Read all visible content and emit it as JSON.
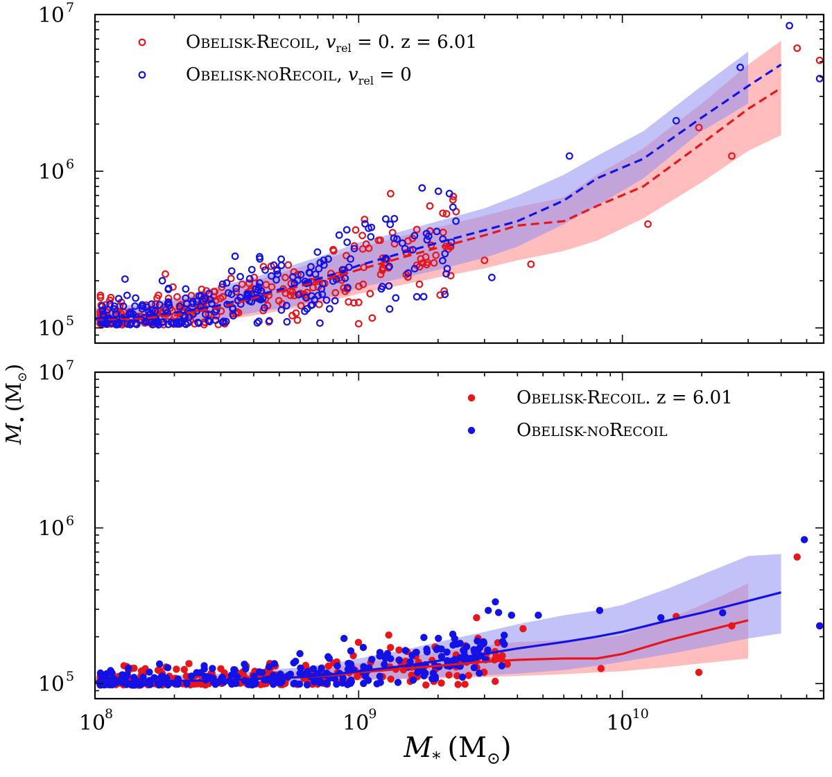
{
  "figure": {
    "xlabel_main": "M",
    "xlabel_sub": "*",
    "xlabel_unit": "(M",
    "xlabel_unit_close": ")",
    "ylabel_main": "M",
    "ylabel_sub": "•",
    "ylabel_unit": "(M",
    "ylabel_unit_close": ")",
    "sun_symbol": "⊙"
  },
  "colors": {
    "recoil": "#e8151b",
    "norecoil": "#1212e6",
    "recoil_band": "#ff9a9a",
    "norecoil_band": "#8f8ff2",
    "overlap": "#9966aa"
  },
  "chart_data": [
    {
      "panel": "top",
      "type": "scatter",
      "marker": "open-circle",
      "xscale": "log",
      "yscale": "log",
      "xlim": [
        100000000.0,
        58000000000.0
      ],
      "ylim": [
        80000.0,
        10000000.0
      ],
      "x_ticks": [
        {
          "base": "10",
          "exp": "8",
          "value": 100000000.0
        },
        {
          "base": "10",
          "exp": "9",
          "value": 1000000000.0
        },
        {
          "base": "10",
          "exp": "10",
          "value": 10000000000.0
        }
      ],
      "y_ticks": [
        {
          "base": "10",
          "exp": "5",
          "value": 100000.0
        },
        {
          "base": "10",
          "exp": "6",
          "value": 1000000.0
        },
        {
          "base": "10",
          "exp": "7",
          "value": 10000000.0
        }
      ],
      "legend_position": "top-left",
      "legend": [
        {
          "series": "recoil",
          "name_sc": "Obelisk-Recoil",
          "suffix": ", v",
          "suffix_sub": "rel",
          "suffix_tail": " = 0.  z = 6.01"
        },
        {
          "series": "norecoil",
          "name_sc": "Obelisk-noRecoil",
          "suffix": ", v",
          "suffix_sub": "rel",
          "suffix_tail": " = 0"
        }
      ],
      "median": {
        "style": "dashed",
        "x": [
          100000000.0,
          150000000.0,
          200000000.0,
          300000000.0,
          400000000.0,
          600000000.0,
          800000000.0,
          1000000000.0,
          1500000000.0,
          2000000000.0,
          3000000000.0,
          4000000000.0,
          6000000000.0,
          8000000000.0,
          12000000000.0,
          20000000000.0,
          30000000000.0,
          40000000000.0
        ],
        "recoil": [
          113000.0,
          115000.0,
          120000.0,
          135000.0,
          155000.0,
          185000.0,
          210000.0,
          235000.0,
          285000.0,
          325000.0,
          390000.0,
          450000.0,
          480000.0,
          600000.0,
          800000.0,
          1500000.0,
          2500000.0,
          3400000.0
        ],
        "norecoil": [
          115000.0,
          118000.0,
          125000.0,
          140000.0,
          160000.0,
          190000.0,
          220000.0,
          250000.0,
          305000.0,
          350000.0,
          420000.0,
          480000.0,
          650000.0,
          900000.0,
          1200000.0,
          2200000.0,
          3500000.0,
          4800000.0
        ]
      },
      "band": {
        "x": [
          100000000.0,
          150000000.0,
          200000000.0,
          300000000.0,
          400000000.0,
          600000000.0,
          800000000.0,
          1000000000.0,
          1500000000.0,
          2000000000.0,
          3000000000.0,
          4000000000.0,
          6000000000.0,
          8000000000.0,
          12000000000.0,
          20000000000.0,
          30000000000.0,
          40000000000.0
        ],
        "recoil_low": [
          104000.0,
          105000.0,
          107000.0,
          112000.0,
          120000.0,
          135000.0,
          150000.0,
          165000.0,
          190000.0,
          210000.0,
          240000.0,
          270000.0,
          310000.0,
          360000.0,
          500000.0,
          850000.0,
          1350000.0,
          1700000.0
        ],
        "recoil_high": [
          130000.0,
          138000.0,
          150000.0,
          175000.0,
          200000.0,
          245000.0,
          285000.0,
          325000.0,
          390000.0,
          440000.0,
          520000.0,
          590000.0,
          680000.0,
          950000.0,
          1400000.0,
          2700000.0,
          4800000.0,
          6800000.0
        ],
        "norecoil_low": [
          105000.0,
          106000.0,
          108000.0,
          115000.0,
          125000.0,
          140000.0,
          160000.0,
          180000.0,
          210000.0,
          235000.0,
          280000.0,
          330000.0,
          460000.0,
          600000.0,
          900000.0,
          1800000.0,
          2700000.0,
          3300000.0
        ],
        "norecoil_high": [
          135000.0,
          142000.0,
          155000.0,
          185000.0,
          210000.0,
          260000.0,
          305000.0,
          350000.0,
          420000.0,
          480000.0,
          580000.0,
          700000.0,
          950000.0,
          1250000.0,
          1800000.0,
          3500000.0,
          5800000.0,
          7000000.0
        ],
        "recoil_x_end": 40000000000.0,
        "norecoil_x_end": 34000000000.0
      },
      "scatter_seed": 7,
      "scatter_count_per_series": 260,
      "scatter_outliers": {
        "recoil": [
          [
            46000000000.0,
            6100000.0
          ],
          [
            56000000000.0,
            5100000.0
          ],
          [
            26000000000.0,
            1250000.0
          ],
          [
            12500000000.0,
            460000.0
          ],
          [
            4500000000.0,
            255000.0
          ],
          [
            19500000000.0,
            1900000.0
          ],
          [
            3000000000.0,
            270000.0
          ],
          [
            1700000000.0,
            190000.0
          ]
        ],
        "norecoil": [
          [
            43000000000.0,
            8500000.0
          ],
          [
            56000000000.0,
            3900000.0
          ],
          [
            28000000000.0,
            4600000.0
          ],
          [
            16000000000.0,
            2100000.0
          ],
          [
            6300000000.0,
            1250000.0
          ],
          [
            3200000000.0,
            210000.0
          ],
          [
            130000000.0,
            205000.0
          ],
          [
            180000000.0,
            200000.0
          ]
        ]
      }
    },
    {
      "panel": "bottom",
      "type": "scatter",
      "marker": "filled-circle",
      "xscale": "log",
      "yscale": "log",
      "xlim": [
        100000000.0,
        58000000000.0
      ],
      "ylim": [
        80000.0,
        10000000.0
      ],
      "x_ticks": [
        {
          "base": "10",
          "exp": "8",
          "value": 100000000.0
        },
        {
          "base": "10",
          "exp": "9",
          "value": 1000000000.0
        },
        {
          "base": "10",
          "exp": "10",
          "value": 10000000000.0
        }
      ],
      "y_ticks": [
        {
          "base": "10",
          "exp": "5",
          "value": 100000.0
        },
        {
          "base": "10",
          "exp": "6",
          "value": 1000000.0
        },
        {
          "base": "10",
          "exp": "7",
          "value": 10000000.0
        }
      ],
      "legend_position": "top-right",
      "legend": [
        {
          "series": "recoil",
          "name_sc": "Obelisk-Recoil",
          "suffix": ".  z = 6.01",
          "suffix_sub": "",
          "suffix_tail": ""
        },
        {
          "series": "norecoil",
          "name_sc": "Obelisk-noRecoil",
          "suffix": "",
          "suffix_sub": "",
          "suffix_tail": ""
        }
      ],
      "median": {
        "style": "solid",
        "x": [
          100000000.0,
          150000000.0,
          200000000.0,
          300000000.0,
          400000000.0,
          600000000.0,
          800000000.0,
          1000000000.0,
          1500000000.0,
          2000000000.0,
          3000000000.0,
          4000000000.0,
          6000000000.0,
          8000000000.0,
          10000000000.0,
          15000000000.0,
          20000000000.0,
          30000000000.0,
          40000000000.0
        ],
        "recoil": [
          103000.0,
          103000.0,
          104000.0,
          105000.0,
          107000.0,
          110000.0,
          113000.0,
          118000.0,
          125000.0,
          130000.0,
          138000.0,
          142000.0,
          145000.0,
          145000.0,
          155000.0,
          190000.0,
          215000.0,
          255000.0,
          null
        ],
        "norecoil": [
          103000.0,
          103000.0,
          104000.0,
          105000.0,
          107000.0,
          110000.0,
          115000.0,
          120000.0,
          130000.0,
          140000.0,
          155000.0,
          168000.0,
          185000.0,
          200000.0,
          215000.0,
          255000.0,
          285000.0,
          340000.0,
          385000.0
        ]
      },
      "band": {
        "x": [
          100000000.0,
          150000000.0,
          200000000.0,
          300000000.0,
          400000000.0,
          600000000.0,
          800000000.0,
          1000000000.0,
          1500000000.0,
          2000000000.0,
          3000000000.0,
          4000000000.0,
          6000000000.0,
          8000000000.0,
          10000000000.0,
          15000000000.0,
          20000000000.0,
          30000000000.0,
          40000000000.0
        ],
        "recoil_low": [
          99000.0,
          99000.0,
          100000.0,
          100000.0,
          101000.0,
          102000.0,
          103000.0,
          105000.0,
          107000.0,
          108000.0,
          110000.0,
          112000.0,
          115000.0,
          118000.0,
          120000.0,
          128000.0,
          135000.0,
          145000.0,
          null
        ],
        "recoil_high": [
          108000.0,
          109000.0,
          110000.0,
          112000.0,
          115000.0,
          120000.0,
          127000.0,
          135000.0,
          148000.0,
          160000.0,
          175000.0,
          185000.0,
          190000.0,
          195000.0,
          205000.0,
          260000.0,
          320000.0,
          440000.0,
          null
        ],
        "norecoil_low": [
          99000.0,
          99000.0,
          100000.0,
          100000.0,
          101000.0,
          102000.0,
          104000.0,
          106000.0,
          108000.0,
          110000.0,
          113000.0,
          116000.0,
          122000.0,
          130000.0,
          138000.0,
          155000.0,
          170000.0,
          195000.0,
          210000.0
        ],
        "norecoil_high": [
          110000.0,
          111000.0,
          113000.0,
          116000.0,
          120000.0,
          127000.0,
          135000.0,
          145000.0,
          165000.0,
          185000.0,
          215000.0,
          240000.0,
          275000.0,
          295000.0,
          320000.0,
          410000.0,
          500000.0,
          660000.0,
          680000.0
        ],
        "recoil_x_end": 30000000000.0,
        "norecoil_x_end": 40000000000.0
      },
      "scatter_seed": 11,
      "scatter_count_per_series": 300,
      "scatter_outliers": {
        "recoil": [
          [
            46000000000.0,
            650000.0
          ],
          [
            56000000000.0,
            235000.0
          ],
          [
            26000000000.0,
            235000.0
          ],
          [
            19500000000.0,
            118000.0
          ],
          [
            16000000000.0,
            270000.0
          ],
          [
            8300000000.0,
            125000.0
          ],
          [
            4200000000.0,
            225000.0
          ],
          [
            2800000000.0,
            265000.0
          ],
          [
            1300000000.0,
            205000.0
          ]
        ],
        "norecoil": [
          [
            49000000000.0,
            840000.0
          ],
          [
            56000000000.0,
            235000.0
          ],
          [
            24000000000.0,
            285000.0
          ],
          [
            14000000000.0,
            265000.0
          ],
          [
            8200000000.0,
            295000.0
          ],
          [
            4800000000.0,
            275000.0
          ],
          [
            3300000000.0,
            335000.0
          ],
          [
            3100000000.0,
            295000.0
          ],
          [
            3800000000.0,
            275000.0
          ],
          [
            880000000.0,
            195000.0
          ]
        ]
      }
    }
  ]
}
